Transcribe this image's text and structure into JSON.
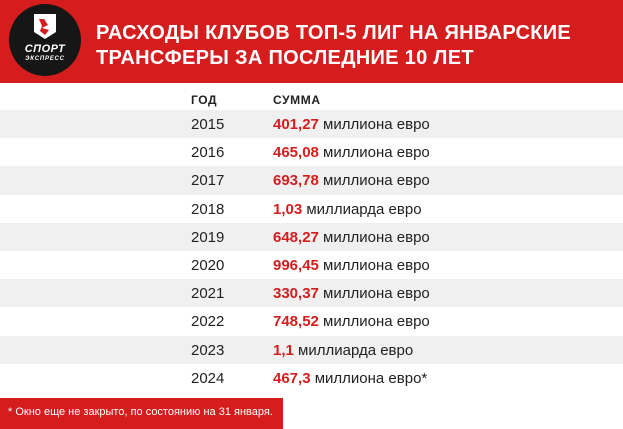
{
  "logo": {
    "line1": "СПОРТ",
    "line2": "ЭКСПРЕСС"
  },
  "title": {
    "line1": "РАСХОДЫ КЛУБОВ ТОП-5 ЛИГ НА ЯНВАРСКИЕ",
    "line2": "ТРАНСФЕРЫ ЗА ПОСЛЕДНИЕ 10 ЛЕТ"
  },
  "columns": {
    "year": "ГОД",
    "sum": "СУММА"
  },
  "rows": [
    {
      "year": "2015",
      "value": "401,27",
      "unit": " миллиона евро"
    },
    {
      "year": "2016",
      "value": "465,08",
      "unit": " миллиона евро"
    },
    {
      "year": "2017",
      "value": "693,78",
      "unit": " миллиона евро"
    },
    {
      "year": "2018",
      "value": "1,03",
      "unit": " миллиарда евро"
    },
    {
      "year": "2019",
      "value": "648,27",
      "unit": " миллиона евро"
    },
    {
      "year": "2020",
      "value": "996,45",
      "unit": " миллиона евро"
    },
    {
      "year": "2021",
      "value": "330,37",
      "unit": " миллиона евро"
    },
    {
      "year": "2022",
      "value": "748,52",
      "unit": " миллиона евро"
    },
    {
      "year": "2023",
      "value": "1,1",
      "unit": " миллиарда евро"
    },
    {
      "year": "2024",
      "value": "467,3",
      "unit": " миллиона евро*"
    }
  ],
  "footnote": "* Окно еще не закрыто, по состоянию на 31 января.",
  "colors": {
    "accent": "#d51d1d",
    "row_stripe": "#f0f0f0",
    "logo_bg": "#161616",
    "text": "#222222"
  }
}
